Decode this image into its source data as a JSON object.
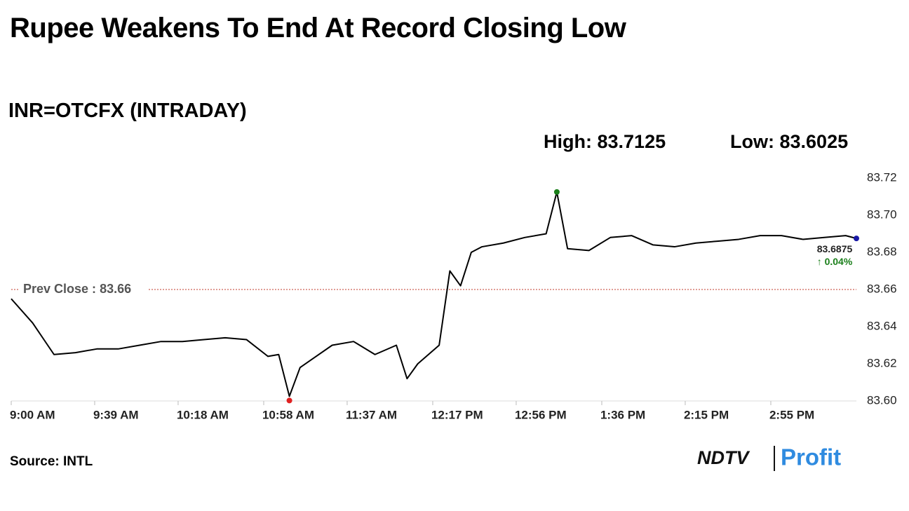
{
  "chart_data": {
    "type": "line",
    "title": "Rupee Weakens To End At Record Closing Low",
    "subtitle": "INR=OTCFX (INTRADAY)",
    "high": {
      "label": "High:",
      "value": 83.7125,
      "x": "1:15 PM",
      "color": "#1a7f1a"
    },
    "low": {
      "label": "Low:",
      "value": 83.6025,
      "x": "11:10 AM",
      "color": "#e02020"
    },
    "prev_close": {
      "label": "Prev Close :",
      "value": 83.66,
      "color": "#c0392b"
    },
    "last": {
      "value": 83.6875,
      "change_label": "↑ 0.04%",
      "color": "#1a1aa6",
      "change_color": "#1a7f1a"
    },
    "source": "Source: INTL",
    "logo": {
      "left": "NDTV",
      "right": "Profit"
    },
    "x": [
      "9:00 AM",
      "9:10 AM",
      "9:20 AM",
      "9:30 AM",
      "9:40 AM",
      "9:50 AM",
      "10:00 AM",
      "10:10 AM",
      "10:20 AM",
      "10:30 AM",
      "10:40 AM",
      "10:50 AM",
      "11:00 AM",
      "11:05 AM",
      "11:10 AM",
      "11:15 AM",
      "11:20 AM",
      "11:30 AM",
      "11:40 AM",
      "11:50 AM",
      "12:00 PM",
      "12:05 PM",
      "12:10 PM",
      "12:20 PM",
      "12:25 PM",
      "12:30 PM",
      "12:35 PM",
      "12:40 PM",
      "12:50 PM",
      "1:00 PM",
      "1:10 PM",
      "1:15 PM",
      "1:20 PM",
      "1:30 PM",
      "1:40 PM",
      "1:50 PM",
      "2:00 PM",
      "2:10 PM",
      "2:20 PM",
      "2:30 PM",
      "2:40 PM",
      "2:50 PM",
      "3:00 PM",
      "3:10 PM",
      "3:20 PM",
      "3:30 PM",
      "3:35 PM"
    ],
    "series": [
      {
        "name": "INR=OTCFX",
        "color": "#000000",
        "values": [
          83.655,
          83.642,
          83.625,
          83.626,
          83.628,
          83.628,
          83.63,
          83.632,
          83.632,
          83.633,
          83.634,
          83.633,
          83.624,
          83.625,
          83.6025,
          83.618,
          83.622,
          83.63,
          83.632,
          83.625,
          83.63,
          83.612,
          83.62,
          83.63,
          83.67,
          83.662,
          83.68,
          83.683,
          83.685,
          83.688,
          83.69,
          83.7125,
          83.682,
          83.681,
          83.688,
          83.689,
          83.684,
          83.683,
          83.685,
          83.686,
          83.687,
          83.689,
          83.689,
          83.687,
          83.688,
          83.689,
          83.6875
        ]
      }
    ],
    "xlim": [
      "9:00 AM",
      "3:35 PM"
    ],
    "xticks": [
      "9:00 AM",
      "9:39 AM",
      "10:18 AM",
      "10:58 AM",
      "11:37 AM",
      "12:17 PM",
      "12:56 PM",
      "1:36 PM",
      "2:15 PM",
      "2:55 PM"
    ],
    "ylim": [
      83.6,
      83.72
    ],
    "yticks": [
      {
        "value": 83.6,
        "label": "83.60"
      },
      83.62,
      83.64,
      83.66,
      83.68,
      {
        "value": 83.7,
        "label": "83.70"
      },
      83.72
    ]
  }
}
